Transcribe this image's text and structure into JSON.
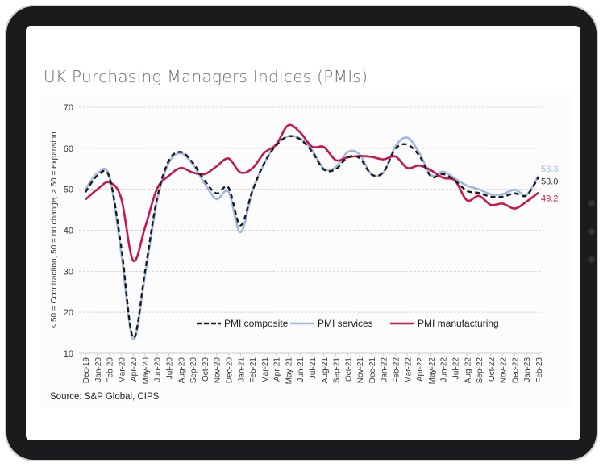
{
  "page": {
    "title": "UK Purchasing Managers Indices (PMIs)"
  },
  "chart_data": {
    "type": "line",
    "title": "",
    "ylabel": "< 50 = Ccontraction, 50 = no change, > 50 = expansion",
    "xlabel": "",
    "ylim": [
      10,
      70
    ],
    "yticks": [
      10,
      20,
      30,
      40,
      50,
      60,
      70
    ],
    "grid": true,
    "legend": "bottom-center",
    "source": "Source: S&P Global, CIPS",
    "categories": [
      "Dec-19",
      "Jan-20",
      "Feb-20",
      "Mar-20",
      "Apr-20",
      "May-20",
      "Jun-20",
      "Jul-20",
      "Aug-20",
      "Sep-20",
      "Oct-20",
      "Nov-20",
      "Dec-20",
      "Jan-21",
      "Feb-21",
      "Mar-21",
      "Apr-21",
      "May-21",
      "Jun-21",
      "Jul-21",
      "Aug-21",
      "Sep-21",
      "Oct-21",
      "Nov-21",
      "Dec-21",
      "Jan-22",
      "Feb-22",
      "Mar-22",
      "Apr-22",
      "May-22",
      "Jun-22",
      "Jul-22",
      "Aug-22",
      "Sep-22",
      "Oct-22",
      "Nov-22",
      "Dec-22",
      "Jan-23",
      "Feb-23"
    ],
    "series": [
      {
        "name": "PMI composite",
        "color": "#1a1a1a",
        "dashed": true,
        "end_label": "53.0",
        "values": [
          49.3,
          53.3,
          53.0,
          36.0,
          13.8,
          30.0,
          47.7,
          57.0,
          59.1,
          56.5,
          52.1,
          49.0,
          50.4,
          41.2,
          49.6,
          56.4,
          60.7,
          62.9,
          62.2,
          59.2,
          54.8,
          54.9,
          57.8,
          57.6,
          53.6,
          54.2,
          59.9,
          60.9,
          58.2,
          53.1,
          53.7,
          52.1,
          49.6,
          49.1,
          48.2,
          48.2,
          49.0,
          48.5,
          53.0
        ]
      },
      {
        "name": "PMI services",
        "color": "#9db8e3",
        "dashed": false,
        "end_label": "53.3",
        "values": [
          50.0,
          53.9,
          53.2,
          34.5,
          13.4,
          29.0,
          47.1,
          56.5,
          58.8,
          56.1,
          51.4,
          47.6,
          49.4,
          39.5,
          49.5,
          56.3,
          61.0,
          62.9,
          62.4,
          59.6,
          55.0,
          55.4,
          59.1,
          58.5,
          53.6,
          54.1,
          60.5,
          62.6,
          58.9,
          53.4,
          54.3,
          52.6,
          50.9,
          50.0,
          48.8,
          48.8,
          49.9,
          48.7,
          53.3
        ]
      },
      {
        "name": "PMI manufacturing",
        "color": "#c8174f",
        "dashed": false,
        "end_label": "49.2",
        "values": [
          47.5,
          50.0,
          51.7,
          47.8,
          32.6,
          40.7,
          50.1,
          53.3,
          55.2,
          54.1,
          53.7,
          55.6,
          57.5,
          54.1,
          55.1,
          58.9,
          60.9,
          65.6,
          63.9,
          60.4,
          60.3,
          57.1,
          57.8,
          58.1,
          57.9,
          57.3,
          58.0,
          55.2,
          55.8,
          54.6,
          52.8,
          52.1,
          47.3,
          48.4,
          46.2,
          46.5,
          45.3,
          47.0,
          49.2
        ]
      }
    ]
  }
}
